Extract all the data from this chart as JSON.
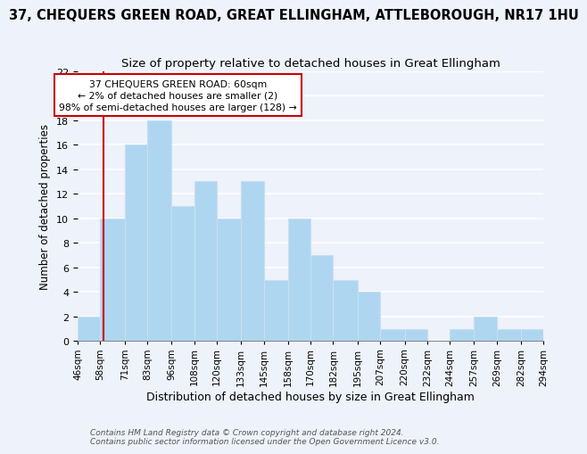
{
  "title": "37, CHEQUERS GREEN ROAD, GREAT ELLINGHAM, ATTLEBOROUGH, NR17 1HU",
  "subtitle": "Size of property relative to detached houses in Great Ellingham",
  "xlabel": "Distribution of detached houses by size in Great Ellingham",
  "ylabel": "Number of detached properties",
  "footer_lines": [
    "Contains HM Land Registry data © Crown copyright and database right 2024.",
    "Contains public sector information licensed under the Open Government Licence v3.0."
  ],
  "bin_edges": [
    46,
    58,
    71,
    83,
    96,
    108,
    120,
    133,
    145,
    158,
    170,
    182,
    195,
    207,
    220,
    232,
    244,
    257,
    269,
    282,
    294
  ],
  "counts": [
    2,
    10,
    16,
    18,
    11,
    13,
    10,
    13,
    5,
    10,
    7,
    5,
    4,
    1,
    1,
    0,
    1,
    2,
    1,
    1
  ],
  "bar_color": "#aed6f1",
  "bar_edgecolor": "#c8dff0",
  "property_line_x": 60,
  "property_line_color": "#cc0000",
  "annotation_text": "37 CHEQUERS GREEN ROAD: 60sqm\n← 2% of detached houses are smaller (2)\n98% of semi-detached houses are larger (128) →",
  "annotation_box_edgecolor": "#cc0000",
  "annotation_box_facecolor": "#ffffff",
  "ylim": [
    0,
    22
  ],
  "yticks": [
    0,
    2,
    4,
    6,
    8,
    10,
    12,
    14,
    16,
    18,
    20,
    22
  ],
  "background_color": "#eef2fa",
  "grid_color": "#ffffff",
  "title_fontsize": 10.5,
  "subtitle_fontsize": 9.5,
  "xlabel_fontsize": 9,
  "ylabel_fontsize": 8.5,
  "tick_fontsize": 7.5,
  "footer_fontsize": 6.5
}
